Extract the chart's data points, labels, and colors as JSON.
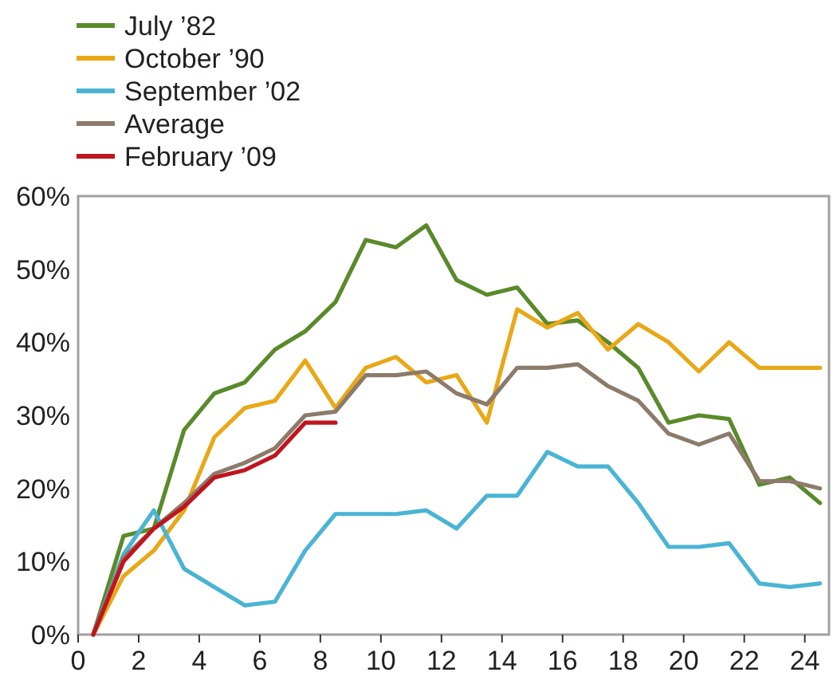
{
  "chart_data": {
    "type": "line",
    "x": [
      0.5,
      1.5,
      2.5,
      3.5,
      4.5,
      5.5,
      6.5,
      7.5,
      8.5,
      9.5,
      10.5,
      11.5,
      12.5,
      13.5,
      14.5,
      15.5,
      16.5,
      17.5,
      18.5,
      19.5,
      20.5,
      21.5,
      22.5,
      23.5,
      24.5
    ],
    "series": [
      {
        "name": "July ’82",
        "color": "#5a8a2a",
        "values": [
          0,
          13.5,
          14.5,
          28,
          33,
          34.5,
          39,
          41.5,
          45.5,
          54,
          53,
          56,
          48.5,
          46.5,
          47.5,
          42.5,
          43,
          40,
          36.5,
          29,
          30,
          29.5,
          20.5,
          21.5,
          18
        ]
      },
      {
        "name": "October ’90",
        "color": "#e8a817",
        "values": [
          0,
          8,
          11.5,
          17,
          27,
          31,
          32,
          37.5,
          31,
          36.5,
          38,
          34.5,
          35.5,
          29,
          44.5,
          42,
          44,
          39,
          42.5,
          40,
          36,
          40,
          36.5,
          36.5,
          36.5
        ]
      },
      {
        "name": "September ’02",
        "color": "#4ab4d4",
        "values": [
          0,
          11,
          17,
          9,
          6.5,
          4,
          4.5,
          11.5,
          16.5,
          16.5,
          16.5,
          17,
          14.5,
          19,
          19,
          25,
          23,
          23,
          18,
          12,
          12,
          12.5,
          7,
          6.5,
          7
        ]
      },
      {
        "name": "Average",
        "color": "#8c7b6b",
        "values": [
          0,
          10.5,
          14.5,
          18,
          22,
          23.5,
          25.5,
          30,
          30.5,
          35.5,
          35.5,
          36,
          33,
          31.5,
          36.5,
          36.5,
          37,
          34,
          32,
          27.5,
          26,
          27.5,
          21,
          21,
          20
        ]
      },
      {
        "name": "February ’09",
        "color": "#c0151f",
        "values": [
          0,
          10,
          14.5,
          17.5,
          21.5,
          22.5,
          24.5,
          29,
          29,
          null,
          null,
          null,
          null,
          null,
          null,
          null,
          null,
          null,
          null,
          null,
          null,
          null,
          null,
          null,
          null
        ]
      }
    ],
    "xlim": [
      0,
      24.8
    ],
    "xticks": [
      0,
      2,
      4,
      6,
      8,
      10,
      12,
      14,
      16,
      18,
      20,
      22,
      24
    ],
    "ylim": [
      0,
      60
    ],
    "yticks": [
      {
        "value": 0,
        "label": "0%"
      },
      {
        "value": 10,
        "label": "10%"
      },
      {
        "value": 20,
        "label": "20%"
      },
      {
        "value": 30,
        "label": "30%"
      },
      {
        "value": 40,
        "label": "40%"
      },
      {
        "value": 50,
        "label": "50%"
      },
      {
        "value": 60,
        "label": "60%"
      }
    ],
    "grid": false,
    "legend": "top left",
    "marker": "none",
    "line_style": "solid"
  }
}
